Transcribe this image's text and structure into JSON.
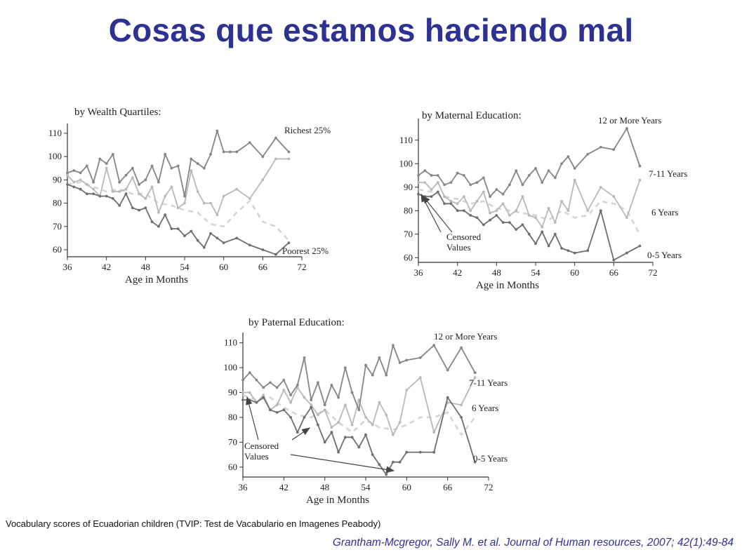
{
  "slide": {
    "title": "Cosas que estamos haciendo mal",
    "caption": "Vocabulary scores of Ecuadorian children (TVIP: Test de Vacabulario en Imagenes Peabody)",
    "citation": "Grantham-Mcgregor, Sally M. et al. Journal of Human resources, 2007; 42(1):49-84"
  },
  "chart_data": [
    {
      "type": "line",
      "title": "by Wealth Quartiles:",
      "xlabel": "Age in Months",
      "ylabel": "",
      "xlim": [
        36,
        72
      ],
      "ylim": [
        57,
        113
      ],
      "xticks": [
        36,
        42,
        48,
        54,
        60,
        66,
        72
      ],
      "yticks": [
        60,
        70,
        80,
        90,
        100,
        110
      ],
      "grid": false,
      "annotations": [],
      "series": [
        {
          "name": "Richest 25%",
          "color": "#858585",
          "dashed": false,
          "x": [
            36,
            37,
            38,
            39,
            40,
            41,
            42,
            43,
            44,
            45,
            46,
            47,
            48,
            49,
            50,
            51,
            52,
            53,
            54,
            55,
            56,
            57,
            58,
            59,
            60,
            61,
            62,
            64,
            66,
            68,
            70
          ],
          "y": [
            93,
            94,
            93,
            96,
            89,
            99,
            97,
            101,
            89,
            92,
            95,
            88,
            90,
            96,
            89,
            101,
            95,
            96,
            83,
            99,
            97,
            95,
            101,
            111,
            102,
            102,
            102,
            106,
            100,
            108,
            102
          ]
        },
        {
          "name": "",
          "color": "#b8b8b8",
          "dashed": false,
          "x": [
            36,
            37,
            38,
            39,
            40,
            41,
            42,
            43,
            44,
            45,
            46,
            47,
            48,
            49,
            50,
            51,
            52,
            53,
            54,
            55,
            56,
            57,
            58,
            59,
            60,
            62,
            64,
            66,
            68,
            70
          ],
          "y": [
            92,
            89,
            90,
            88,
            86,
            83,
            95,
            85,
            85,
            86,
            91,
            84,
            82,
            87,
            76,
            83,
            87,
            78,
            80,
            94,
            85,
            80,
            80,
            75,
            83,
            86,
            82,
            90,
            99,
            99
          ]
        },
        {
          "name": "",
          "color": "#d4d4d4",
          "dashed": true,
          "x": [
            36,
            38,
            40,
            42,
            44,
            46,
            48,
            50,
            52,
            54,
            56,
            58,
            60,
            62,
            64,
            66,
            68,
            70
          ],
          "y": [
            88,
            89,
            87,
            85,
            86,
            84,
            84,
            80,
            79,
            77,
            76,
            71,
            70,
            76,
            81,
            72,
            70,
            64
          ]
        },
        {
          "name": "Poorest 25%",
          "color": "#6e6e6e",
          "dashed": false,
          "x": [
            36,
            37,
            38,
            39,
            40,
            41,
            42,
            43,
            44,
            45,
            46,
            47,
            48,
            49,
            50,
            51,
            52,
            53,
            54,
            55,
            56,
            57,
            58,
            59,
            60,
            62,
            64,
            66,
            68,
            70
          ],
          "y": [
            88,
            87,
            86,
            84,
            84,
            83,
            83,
            82,
            79,
            84,
            78,
            77,
            78,
            72,
            70,
            75,
            69,
            69,
            66,
            68,
            64,
            61,
            67,
            65,
            63,
            65,
            62,
            60,
            58,
            63
          ]
        }
      ]
    },
    {
      "type": "line",
      "title": "by Maternal Education:",
      "xlabel": "Age in Months",
      "ylabel": "",
      "xlim": [
        36,
        72
      ],
      "ylim": [
        58,
        118
      ],
      "xticks": [
        36,
        42,
        48,
        54,
        60,
        66,
        72
      ],
      "yticks": [
        60,
        70,
        80,
        90,
        100,
        110
      ],
      "grid": false,
      "annotations": [
        "Censored",
        "Values"
      ],
      "series": [
        {
          "name": "12 or More Years",
          "color": "#858585",
          "dashed": false,
          "x": [
            36,
            37,
            38,
            39,
            40,
            41,
            42,
            43,
            44,
            45,
            46,
            47,
            48,
            49,
            50,
            51,
            52,
            53,
            54,
            55,
            56,
            57,
            58,
            59,
            60,
            62,
            64,
            66,
            68,
            70
          ],
          "y": [
            95,
            97,
            95,
            95,
            91,
            92,
            96,
            95,
            91,
            92,
            94,
            86,
            89,
            87,
            91,
            97,
            91,
            95,
            98,
            92,
            97,
            94,
            100,
            103,
            98,
            104,
            107,
            106,
            115,
            99
          ]
        },
        {
          "name": "7-11 Years",
          "color": "#b8b8b8",
          "dashed": false,
          "x": [
            36,
            37,
            38,
            39,
            40,
            41,
            42,
            43,
            44,
            45,
            46,
            47,
            48,
            49,
            50,
            51,
            52,
            53,
            54,
            55,
            56,
            57,
            58,
            59,
            60,
            62,
            64,
            66,
            68,
            70
          ],
          "y": [
            92,
            92,
            89,
            92,
            86,
            84,
            83,
            86,
            80,
            84,
            88,
            79,
            80,
            83,
            78,
            80,
            86,
            78,
            77,
            73,
            81,
            75,
            84,
            80,
            93,
            80,
            90,
            86,
            77,
            93
          ]
        },
        {
          "name": "6 Years",
          "color": "#d4d4d4",
          "dashed": true,
          "x": [
            36,
            38,
            40,
            42,
            44,
            46,
            48,
            50,
            52,
            54,
            56,
            58,
            60,
            62,
            64,
            66,
            68,
            70
          ],
          "y": [
            89,
            88,
            86,
            85,
            83,
            84,
            81,
            80,
            79,
            78,
            76,
            80,
            77,
            78,
            84,
            83,
            80,
            70
          ]
        },
        {
          "name": "0-5 Years",
          "color": "#6e6e6e",
          "dashed": false,
          "x": [
            36,
            37,
            38,
            39,
            40,
            41,
            42,
            43,
            44,
            45,
            46,
            47,
            48,
            49,
            50,
            51,
            52,
            53,
            54,
            55,
            56,
            57,
            58,
            59,
            60,
            62,
            64,
            66,
            68,
            70
          ],
          "y": [
            87,
            86,
            86,
            88,
            83,
            83,
            80,
            80,
            78,
            77,
            74,
            76,
            78,
            75,
            75,
            72,
            74,
            70,
            66,
            71,
            65,
            70,
            64,
            63,
            62,
            63,
            80,
            59,
            62,
            65
          ]
        }
      ]
    },
    {
      "type": "line",
      "title": "by Paternal Education:",
      "xlabel": "Age in Months",
      "ylabel": "",
      "xlim": [
        36,
        72
      ],
      "ylim": [
        56,
        113
      ],
      "xticks": [
        36,
        42,
        48,
        54,
        60,
        66,
        72
      ],
      "yticks": [
        60,
        70,
        80,
        90,
        100,
        110
      ],
      "grid": false,
      "annotations": [
        "Censored",
        "Values"
      ],
      "series": [
        {
          "name": "12 or More Years",
          "color": "#858585",
          "dashed": false,
          "x": [
            36,
            37,
            38,
            39,
            40,
            41,
            42,
            43,
            44,
            45,
            46,
            47,
            48,
            49,
            50,
            51,
            52,
            53,
            54,
            55,
            56,
            57,
            58,
            59,
            60,
            62,
            64,
            66,
            68,
            70
          ],
          "y": [
            95,
            98,
            95,
            92,
            94,
            92,
            95,
            89,
            93,
            104,
            87,
            94,
            85,
            93,
            88,
            100,
            90,
            83,
            101,
            97,
            104,
            97,
            109,
            102,
            103,
            104,
            109,
            99,
            108,
            98
          ]
        },
        {
          "name": "7-11 Years",
          "color": "#b8b8b8",
          "dashed": false,
          "x": [
            36,
            37,
            38,
            39,
            40,
            41,
            42,
            43,
            44,
            45,
            46,
            47,
            48,
            49,
            50,
            51,
            52,
            53,
            54,
            55,
            56,
            57,
            58,
            59,
            60,
            62,
            64,
            66,
            68,
            70
          ],
          "y": [
            90,
            90,
            86,
            89,
            83,
            85,
            91,
            86,
            92,
            88,
            85,
            81,
            83,
            76,
            78,
            85,
            77,
            87,
            80,
            77,
            86,
            81,
            73,
            78,
            91,
            96,
            74,
            86,
            85,
            96
          ]
        },
        {
          "name": "6 Years",
          "color": "#d4d4d4",
          "dashed": true,
          "x": [
            36,
            38,
            40,
            42,
            44,
            46,
            48,
            50,
            52,
            54,
            56,
            58,
            60,
            62,
            64,
            66,
            68,
            70
          ],
          "y": [
            89,
            87,
            88,
            84,
            81,
            80,
            83,
            78,
            74,
            79,
            76,
            75,
            77,
            80,
            80,
            82,
            73,
            80
          ]
        },
        {
          "name": "0-5 Years",
          "color": "#6e6e6e",
          "dashed": false,
          "x": [
            36,
            37,
            38,
            39,
            40,
            41,
            42,
            43,
            44,
            45,
            46,
            47,
            48,
            49,
            50,
            51,
            52,
            53,
            54,
            55,
            56,
            57,
            58,
            59,
            60,
            62,
            64,
            66,
            68,
            70
          ],
          "y": [
            87,
            87,
            86,
            88,
            83,
            82,
            83,
            80,
            74,
            80,
            84,
            77,
            70,
            74,
            66,
            72,
            72,
            68,
            73,
            65,
            61,
            57,
            62,
            62,
            66,
            66,
            66,
            88,
            80,
            62
          ]
        }
      ]
    }
  ]
}
